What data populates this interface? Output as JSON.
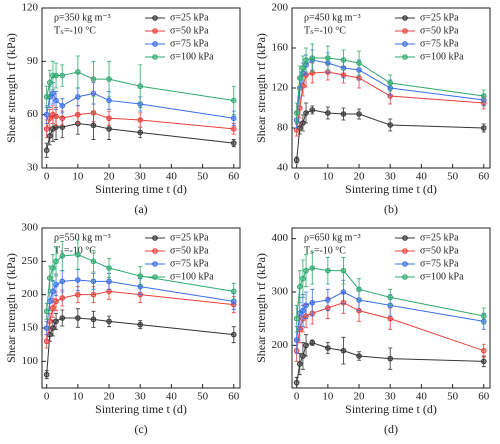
{
  "chart_data": [
    {
      "type": "line",
      "label": "(a)",
      "annotations": [
        "ρ=350 kg m⁻³",
        "Tₛ=-10 °C"
      ],
      "xlabel": "Sintering time t (d)",
      "ylabel": "Shear strength τf (kPa)",
      "x": [
        0,
        1,
        2,
        3,
        5,
        10,
        15,
        20,
        30,
        60
      ],
      "xlim": [
        -1.5,
        62
      ],
      "xticks": [
        0,
        10,
        20,
        30,
        40,
        50,
        60
      ],
      "ylim": [
        30,
        120
      ],
      "yticks": [
        30,
        60,
        90,
        120
      ],
      "legend": "upper right",
      "series": [
        {
          "name": "σ=25 kPa",
          "color": "#333333",
          "values": [
            40,
            48,
            52,
            53,
            53,
            55,
            54,
            52,
            50,
            44
          ],
          "errors": [
            4,
            5,
            7,
            7,
            6,
            6,
            8,
            6,
            3,
            2
          ]
        },
        {
          "name": "σ=50 kPa",
          "color": "#e8413c",
          "values": [
            52,
            58,
            60,
            59,
            58,
            60,
            61,
            58,
            57,
            52
          ],
          "errors": [
            5,
            5,
            5,
            5,
            4,
            5,
            5,
            4,
            4,
            3
          ]
        },
        {
          "name": "σ=75 kPa",
          "color": "#3b6ee8",
          "values": [
            60,
            70,
            72,
            68,
            65,
            70,
            72,
            68,
            66,
            58
          ],
          "errors": [
            5,
            6,
            6,
            5,
            4,
            5,
            6,
            5,
            4,
            4
          ]
        },
        {
          "name": "σ=100 kPa",
          "color": "#2eaa6e",
          "values": [
            70,
            78,
            82,
            82,
            82,
            84,
            80,
            80,
            76,
            68
          ],
          "errors": [
            6,
            7,
            8,
            7,
            6,
            9,
            10,
            10,
            12,
            8
          ]
        }
      ]
    },
    {
      "type": "line",
      "label": "(b)",
      "annotations": [
        "ρ=450 kg m⁻³",
        "Tₛ=-10 °C"
      ],
      "xlabel": "Sintering time t (d)",
      "ylabel": "Shear strength τf (kPa)",
      "x": [
        0,
        1,
        2,
        3,
        5,
        10,
        15,
        20,
        30,
        60
      ],
      "xlim": [
        -1.5,
        62
      ],
      "xticks": [
        0,
        10,
        20,
        30,
        40,
        50,
        60
      ],
      "ylim": [
        40,
        200
      ],
      "yticks": [
        40,
        80,
        120,
        160,
        200
      ],
      "legend": "upper right",
      "series": [
        {
          "name": "σ=25 kPa",
          "color": "#333333",
          "values": [
            48,
            80,
            85,
            95,
            98,
            95,
            94,
            94,
            83,
            80
          ],
          "errors": [
            3,
            6,
            8,
            10,
            4,
            6,
            6,
            5,
            6,
            4
          ]
        },
        {
          "name": "σ=50 kPa",
          "color": "#e8413c",
          "values": [
            78,
            100,
            122,
            133,
            135,
            136,
            133,
            130,
            112,
            105
          ],
          "errors": [
            6,
            10,
            10,
            12,
            10,
            8,
            8,
            10,
            8,
            6
          ]
        },
        {
          "name": "σ=75 kPa",
          "color": "#3b6ee8",
          "values": [
            88,
            120,
            135,
            143,
            148,
            145,
            140,
            138,
            120,
            108
          ],
          "errors": [
            8,
            10,
            10,
            10,
            10,
            10,
            10,
            10,
            8,
            6
          ]
        },
        {
          "name": "σ=100 kPa",
          "color": "#2eaa6e",
          "values": [
            95,
            130,
            140,
            148,
            150,
            150,
            148,
            145,
            125,
            112
          ],
          "errors": [
            10,
            12,
            12,
            12,
            14,
            12,
            10,
            12,
            8,
            6
          ]
        }
      ]
    },
    {
      "type": "line",
      "label": "(c)",
      "annotations": [
        "ρ=550 kg m⁻³",
        "Tₛ=-10 °C"
      ],
      "xlabel": "Sintering time t (d)",
      "ylabel": "Shear strength τf (kPa)",
      "x": [
        0,
        1,
        2,
        3,
        5,
        10,
        15,
        20,
        30,
        60
      ],
      "xlim": [
        -1.5,
        62
      ],
      "xticks": [
        0,
        10,
        20,
        30,
        40,
        50,
        60
      ],
      "ylim": [
        60,
        300
      ],
      "yticks": [
        100,
        150,
        200,
        250,
        300
      ],
      "legend": "upper right",
      "series": [
        {
          "name": "σ=25 kPa",
          "color": "#333333",
          "values": [
            80,
            140,
            150,
            160,
            165,
            165,
            163,
            160,
            155,
            140
          ],
          "errors": [
            6,
            10,
            12,
            12,
            12,
            14,
            12,
            8,
            6,
            12
          ]
        },
        {
          "name": "σ=50 kPa",
          "color": "#e8413c",
          "values": [
            130,
            160,
            180,
            190,
            195,
            200,
            200,
            205,
            200,
            185
          ],
          "errors": [
            10,
            12,
            14,
            14,
            12,
            12,
            12,
            12,
            12,
            12
          ]
        },
        {
          "name": "σ=75 kPa",
          "color": "#3b6ee8",
          "values": [
            150,
            190,
            205,
            215,
            220,
            222,
            220,
            220,
            212,
            190
          ],
          "errors": [
            10,
            14,
            16,
            16,
            16,
            16,
            12,
            12,
            12,
            12
          ]
        },
        {
          "name": "σ=100 kPa",
          "color": "#2eaa6e",
          "values": [
            175,
            225,
            240,
            250,
            258,
            260,
            250,
            240,
            228,
            205
          ],
          "errors": [
            12,
            18,
            20,
            22,
            22,
            22,
            16,
            14,
            14,
            12
          ]
        }
      ]
    },
    {
      "type": "line",
      "label": "(d)",
      "annotations": [
        "ρ=650 kg m⁻³",
        "Tₛ=-10 °C"
      ],
      "xlabel": "Sintering time t (d)",
      "ylabel": "Shear strength τf (kPa)",
      "x": [
        0,
        1,
        2,
        3,
        5,
        10,
        15,
        20,
        30,
        60
      ],
      "xlim": [
        -1.5,
        62
      ],
      "xticks": [
        0,
        10,
        20,
        30,
        40,
        50,
        60
      ],
      "ylim": [
        120,
        420
      ],
      "yticks": [
        200,
        300,
        400
      ],
      "legend": "upper right",
      "series": [
        {
          "name": "σ=25 kPa",
          "color": "#333333",
          "values": [
            130,
            165,
            180,
            200,
            205,
            195,
            190,
            180,
            175,
            170
          ],
          "errors": [
            10,
            20,
            25,
            20,
            5,
            10,
            25,
            8,
            20,
            10
          ]
        },
        {
          "name": "σ=50 kPa",
          "color": "#e8413c",
          "values": [
            190,
            230,
            250,
            255,
            260,
            270,
            280,
            265,
            250,
            190
          ],
          "errors": [
            20,
            25,
            25,
            22,
            20,
            20,
            20,
            20,
            20,
            12
          ]
        },
        {
          "name": "σ=75 kPa",
          "color": "#3b6ee8",
          "values": [
            210,
            260,
            265,
            275,
            280,
            285,
            300,
            285,
            275,
            245
          ],
          "errors": [
            25,
            30,
            30,
            25,
            25,
            20,
            22,
            20,
            20,
            15
          ]
        },
        {
          "name": "σ=100 kPa",
          "color": "#2eaa6e",
          "values": [
            250,
            310,
            325,
            340,
            345,
            340,
            340,
            305,
            290,
            255
          ],
          "errors": [
            25,
            30,
            35,
            30,
            30,
            25,
            25,
            20,
            15,
            15
          ]
        }
      ]
    }
  ]
}
